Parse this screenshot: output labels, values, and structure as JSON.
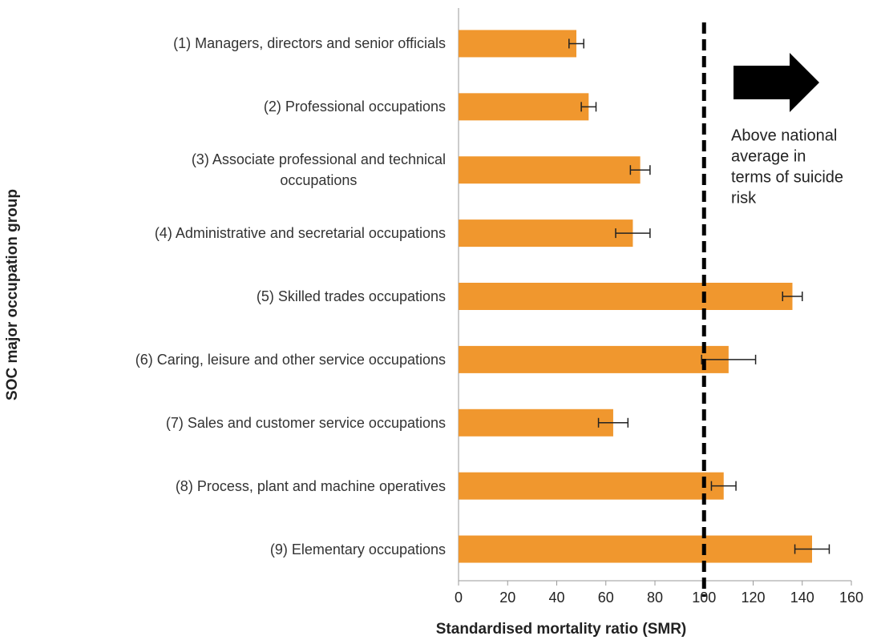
{
  "chart_data": {
    "type": "barh",
    "categories": [
      "(1) Managers, directors and senior officials",
      "(2) Professional occupations",
      "(3) Associate professional and technical\noccupations",
      "(4) Administrative and secretarial occupations",
      "(5) Skilled trades occupations",
      "(6) Caring, leisure and other service occupations",
      "(7) Sales and customer service occupations",
      "(8) Process, plant and machine operatives",
      "(9) Elementary occupations"
    ],
    "values": [
      48,
      53,
      74,
      71,
      136,
      110,
      63,
      108,
      144
    ],
    "errors": [
      3,
      3,
      4,
      7,
      4,
      11,
      6,
      5,
      7
    ],
    "color": "#f0972e",
    "xlim": [
      0,
      160
    ],
    "xticks": [
      0,
      20,
      40,
      60,
      80,
      100,
      120,
      140,
      160
    ],
    "xlabel": "Standardised mortality ratio (SMR)",
    "ylabel": "SOC major occupation group",
    "reference_line": 100,
    "annotation": [
      "Above national",
      "average in",
      "terms of suicide",
      "risk"
    ]
  }
}
